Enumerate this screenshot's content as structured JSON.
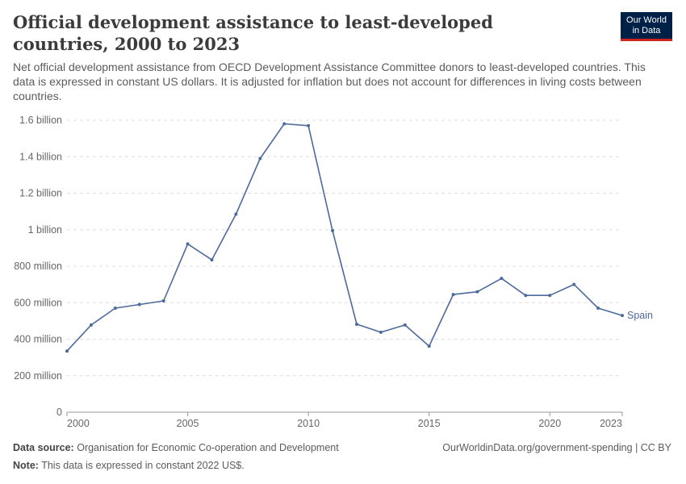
{
  "header": {
    "title": "Official development assistance to least-developed countries, 2000 to 2023",
    "subtitle": "Net official development assistance from OECD Development Assistance Committee donors to least-developed countries. This data is expressed in constant US dollars. It is adjusted for inflation but does not account for differences in living costs between countries."
  },
  "logo": {
    "line1": "Our World",
    "line2": "in Data",
    "bg_color": "#002147",
    "accent_color": "#ce261e"
  },
  "footer": {
    "source_label": "Data source:",
    "source_text": "Organisation for Economic Co-operation and Development",
    "note_label": "Note:",
    "note_text": "This data is expressed in constant 2022 US$.",
    "credit": "OurWorldinData.org/government-spending | CC BY"
  },
  "chart_data": {
    "type": "line",
    "x": [
      2000,
      2001,
      2002,
      2003,
      2004,
      2005,
      2006,
      2007,
      2008,
      2009,
      2010,
      2011,
      2012,
      2013,
      2014,
      2015,
      2016,
      2017,
      2018,
      2019,
      2020,
      2021,
      2022,
      2023
    ],
    "series": [
      {
        "name": "Spain",
        "color": "#4c6a9c",
        "values": [
          335000000,
          478000000,
          570000000,
          590000000,
          610000000,
          922000000,
          835000000,
          1085000000,
          1390000000,
          1580000000,
          1570000000,
          995000000,
          482000000,
          438000000,
          478000000,
          362000000,
          645000000,
          660000000,
          733000000,
          640000000,
          640000000,
          700000000,
          570000000,
          530000000
        ]
      }
    ],
    "xlim": [
      2000,
      2023
    ],
    "ylim": [
      0,
      1600000000
    ],
    "x_ticks": [
      {
        "value": 2000,
        "label": "2000"
      },
      {
        "value": 2005,
        "label": "2005"
      },
      {
        "value": 2010,
        "label": "2010"
      },
      {
        "value": 2015,
        "label": "2015"
      },
      {
        "value": 2020,
        "label": "2020"
      },
      {
        "value": 2023,
        "label": "2023"
      }
    ],
    "y_ticks": [
      {
        "value": 0,
        "label": "0"
      },
      {
        "value": 200000000,
        "label": "200 million"
      },
      {
        "value": 400000000,
        "label": "400 million"
      },
      {
        "value": 600000000,
        "label": "600 million"
      },
      {
        "value": 800000000,
        "label": "800 million"
      },
      {
        "value": 1000000000,
        "label": "1 billion"
      },
      {
        "value": 1200000000,
        "label": "1.2 billion"
      },
      {
        "value": 1400000000,
        "label": "1.4 billion"
      },
      {
        "value": 1600000000,
        "label": "1.6 billion"
      }
    ],
    "grid": "horizontal dashed",
    "legend": "inline-right"
  }
}
